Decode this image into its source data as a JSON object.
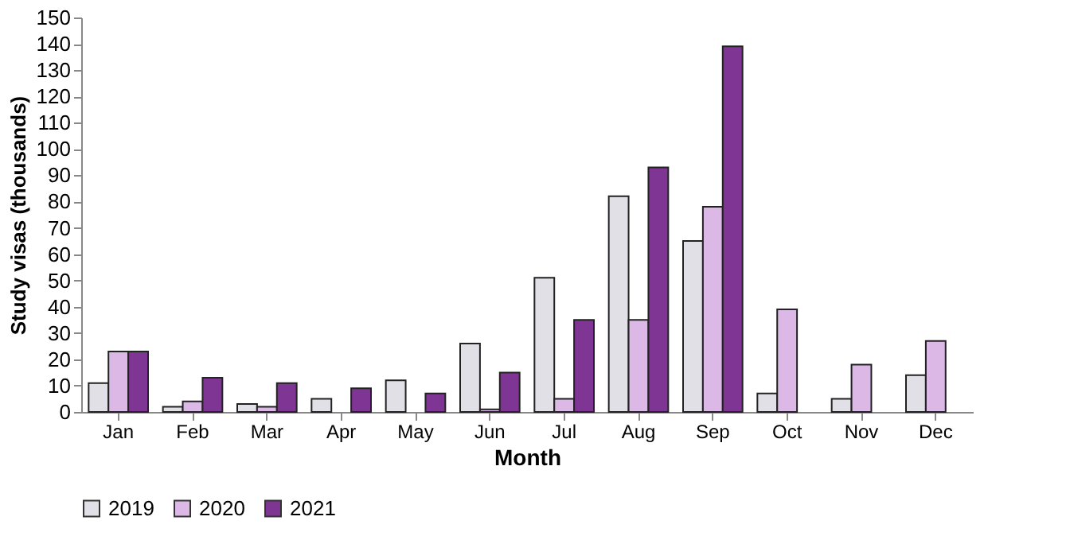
{
  "chart_data": {
    "type": "bar",
    "xlabel": "Month",
    "ylabel": "Study visas (thousands)",
    "categories": [
      "Jan",
      "Feb",
      "Mar",
      "Apr",
      "May",
      "Jun",
      "Jul",
      "Aug",
      "Sep",
      "Oct",
      "Nov",
      "Dec"
    ],
    "series": [
      {
        "name": "2019",
        "color": "#e0e0e6",
        "values": [
          11,
          2,
          3,
          5,
          12,
          26,
          51,
          82,
          65,
          7,
          5,
          14
        ]
      },
      {
        "name": "2020",
        "color": "#dcb8e6",
        "values": [
          23,
          4,
          2,
          null,
          null,
          1,
          5,
          35,
          78,
          39,
          18,
          27
        ]
      },
      {
        "name": "2021",
        "color": "#7e3593",
        "values": [
          23,
          13,
          11,
          9,
          7,
          15,
          35,
          93,
          139,
          null,
          null,
          null
        ]
      }
    ],
    "ylim": [
      0,
      150
    ],
    "yticks": [
      0,
      10,
      20,
      30,
      40,
      50,
      60,
      70,
      80,
      90,
      100,
      110,
      120,
      130,
      140,
      150
    ],
    "grid": false,
    "legend": "bottom"
  }
}
